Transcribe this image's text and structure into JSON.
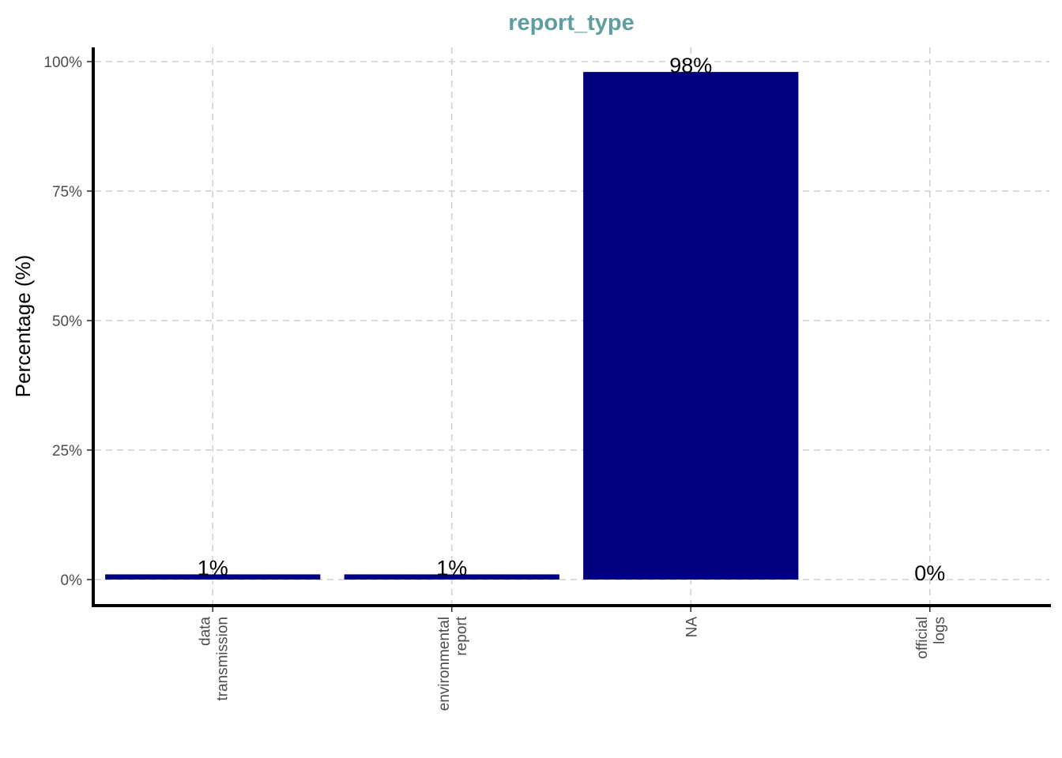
{
  "chart_data": {
    "type": "bar",
    "title": "report_type",
    "xlabel": "",
    "ylabel": "Percentage (%)",
    "categories": [
      [
        "data",
        "transmission"
      ],
      [
        "environmental",
        "report"
      ],
      [
        "NA"
      ],
      [
        "official",
        "logs"
      ]
    ],
    "values": [
      1,
      1,
      98,
      0
    ],
    "data_labels": [
      "1%",
      "1%",
      "98%",
      "0%"
    ],
    "yticks": [
      0,
      25,
      50,
      75,
      100
    ],
    "ytick_labels": [
      "0%",
      "25%",
      "50%",
      "75%",
      "100%"
    ],
    "ylim": [
      -5,
      105
    ],
    "grid": true,
    "legend": "none"
  },
  "colors": {
    "bar": "#00007f",
    "title": "#5f9ea0"
  }
}
